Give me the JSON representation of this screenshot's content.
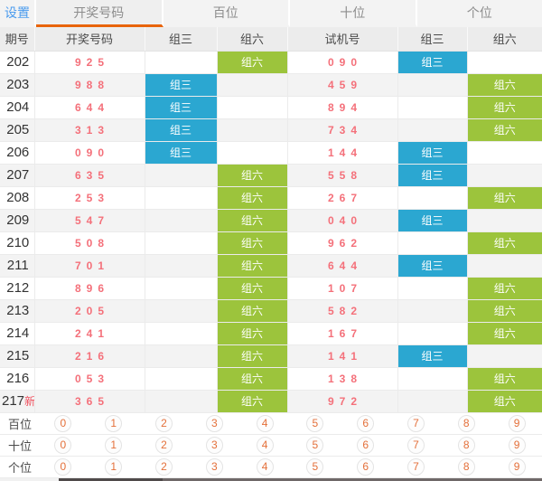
{
  "colors": {
    "accent_orange": "#E8640C",
    "settings_blue": "#4A9BEE",
    "badge_blue": "#2BA7D1",
    "badge_green": "#9CC43C",
    "number_pink": "#F4707A",
    "new_red": "#F0505E",
    "digit_orange": "#E4703A"
  },
  "tabbar": {
    "settings_label": "设置",
    "tabs": [
      {
        "label": "开奖号码",
        "active": true
      },
      {
        "label": "百位",
        "active": false
      },
      {
        "label": "十位",
        "active": false
      },
      {
        "label": "个位",
        "active": false
      }
    ]
  },
  "table": {
    "headers": [
      "期号",
      "开奖号码",
      "组三",
      "组六",
      "试机号",
      "组三",
      "组六"
    ],
    "rows": [
      {
        "period": "202",
        "new_label": "",
        "number": "925",
        "open_zu3": "",
        "open_zu6": "组六",
        "test_number": "090",
        "test_zu3": "组三",
        "test_zu6": ""
      },
      {
        "period": "203",
        "new_label": "",
        "number": "988",
        "open_zu3": "组三",
        "open_zu6": "",
        "test_number": "459",
        "test_zu3": "",
        "test_zu6": "组六"
      },
      {
        "period": "204",
        "new_label": "",
        "number": "644",
        "open_zu3": "组三",
        "open_zu6": "",
        "test_number": "894",
        "test_zu3": "",
        "test_zu6": "组六"
      },
      {
        "period": "205",
        "new_label": "",
        "number": "313",
        "open_zu3": "组三",
        "open_zu6": "",
        "test_number": "734",
        "test_zu3": "",
        "test_zu6": "组六"
      },
      {
        "period": "206",
        "new_label": "",
        "number": "090",
        "open_zu3": "组三",
        "open_zu6": "",
        "test_number": "144",
        "test_zu3": "组三",
        "test_zu6": ""
      },
      {
        "period": "207",
        "new_label": "",
        "number": "635",
        "open_zu3": "",
        "open_zu6": "组六",
        "test_number": "558",
        "test_zu3": "组三",
        "test_zu6": ""
      },
      {
        "period": "208",
        "new_label": "",
        "number": "253",
        "open_zu3": "",
        "open_zu6": "组六",
        "test_number": "267",
        "test_zu3": "",
        "test_zu6": "组六"
      },
      {
        "period": "209",
        "new_label": "",
        "number": "547",
        "open_zu3": "",
        "open_zu6": "组六",
        "test_number": "040",
        "test_zu3": "组三",
        "test_zu6": ""
      },
      {
        "period": "210",
        "new_label": "",
        "number": "508",
        "open_zu3": "",
        "open_zu6": "组六",
        "test_number": "962",
        "test_zu3": "",
        "test_zu6": "组六"
      },
      {
        "period": "211",
        "new_label": "",
        "number": "701",
        "open_zu3": "",
        "open_zu6": "组六",
        "test_number": "644",
        "test_zu3": "组三",
        "test_zu6": ""
      },
      {
        "period": "212",
        "new_label": "",
        "number": "896",
        "open_zu3": "",
        "open_zu6": "组六",
        "test_number": "107",
        "test_zu3": "",
        "test_zu6": "组六"
      },
      {
        "period": "213",
        "new_label": "",
        "number": "205",
        "open_zu3": "",
        "open_zu6": "组六",
        "test_number": "582",
        "test_zu3": "",
        "test_zu6": "组六"
      },
      {
        "period": "214",
        "new_label": "",
        "number": "241",
        "open_zu3": "",
        "open_zu6": "组六",
        "test_number": "167",
        "test_zu3": "",
        "test_zu6": "组六"
      },
      {
        "period": "215",
        "new_label": "",
        "number": "216",
        "open_zu3": "",
        "open_zu6": "组六",
        "test_number": "141",
        "test_zu3": "组三",
        "test_zu6": ""
      },
      {
        "period": "216",
        "new_label": "",
        "number": "053",
        "open_zu3": "",
        "open_zu6": "组六",
        "test_number": "138",
        "test_zu3": "",
        "test_zu6": "组六"
      },
      {
        "period": "217",
        "new_label": "新",
        "number": "365",
        "open_zu3": "",
        "open_zu6": "组六",
        "test_number": "972",
        "test_zu3": "",
        "test_zu6": "组六"
      }
    ]
  },
  "digit_panel": {
    "rows": [
      {
        "label": "百位",
        "digits": [
          "0",
          "1",
          "2",
          "3",
          "4",
          "5",
          "6",
          "7",
          "8",
          "9"
        ]
      },
      {
        "label": "十位",
        "digits": [
          "0",
          "1",
          "2",
          "3",
          "4",
          "5",
          "6",
          "7",
          "8",
          "9"
        ]
      },
      {
        "label": "个位",
        "digits": [
          "0",
          "1",
          "2",
          "3",
          "4",
          "5",
          "6",
          "7",
          "8",
          "9"
        ]
      }
    ]
  }
}
